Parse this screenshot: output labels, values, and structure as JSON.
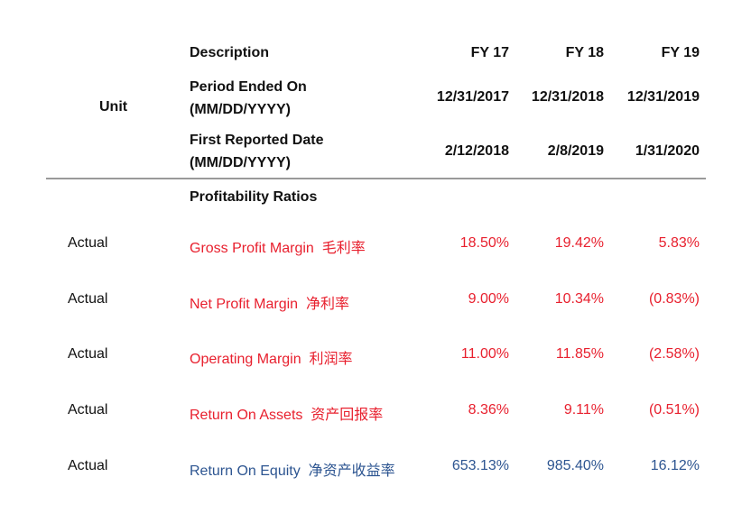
{
  "header": {
    "unit_label": "Unit",
    "description_label": "Description",
    "period_label_line1": "Period Ended On",
    "period_label_line2": "(MM/DD/YYYY)",
    "reported_label_line1": "First Reported Date",
    "reported_label_line2": "(MM/DD/YYYY)",
    "years": [
      "FY 17",
      "FY 18",
      "FY 19"
    ],
    "period_dates": [
      "12/31/2017",
      "12/31/2018",
      "12/31/2019"
    ],
    "reported_dates": [
      "2/12/2018",
      "2/8/2019",
      "1/31/2020"
    ]
  },
  "section": {
    "title": "Profitability Ratios"
  },
  "rows": [
    {
      "unit": "Actual",
      "label": "Gross Profit Margin",
      "label_cn": "毛利率",
      "values": [
        "18.50%",
        "19.42%",
        "5.83%"
      ],
      "color": "#e8202e"
    },
    {
      "unit": "Actual",
      "label": "Net Profit Margin",
      "label_cn": "净利率",
      "values": [
        "9.00%",
        "10.34%",
        "(0.83%)"
      ],
      "color": "#e8202e"
    },
    {
      "unit": "Actual",
      "label": "Operating Margin",
      "label_cn": "利润率",
      "values": [
        "11.00%",
        "11.85%",
        "(2.58%)"
      ],
      "color": "#e8202e"
    },
    {
      "unit": "Actual",
      "label": "Return On Assets",
      "label_cn": "资产回报率",
      "values": [
        "8.36%",
        "9.11%",
        "(0.51%)"
      ],
      "color": "#e8202e"
    },
    {
      "unit": "Actual",
      "label": "Return On Equity",
      "label_cn": "净资产收益率",
      "values": [
        "653.13%",
        "985.40%",
        "16.12%"
      ],
      "color": "#2d5591"
    }
  ]
}
